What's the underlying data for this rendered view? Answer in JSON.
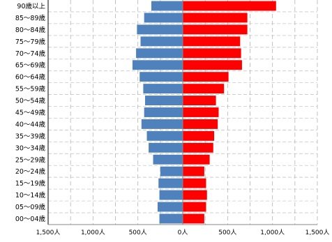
{
  "chart_data": {
    "type": "bar",
    "orientation": "horizontal",
    "subtype": "population-pyramid",
    "title": "",
    "xlabel": "",
    "ylabel": "",
    "categories": [
      "90歳以上",
      "85～89歳",
      "80～84歳",
      "75～79歳",
      "70～74歳",
      "65～69歳",
      "60～64歳",
      "55～59歳",
      "50～54歳",
      "45～49歳",
      "40～44歳",
      "35～39歳",
      "30～34歳",
      "25～29歳",
      "20～24歳",
      "15～19歳",
      "10～14歳",
      "05～09歳",
      "00～04歳"
    ],
    "series": [
      {
        "color": "#4F81BD",
        "side": "left",
        "values": [
          350,
          430,
          510,
          470,
          520,
          560,
          480,
          440,
          420,
          430,
          460,
          400,
          380,
          330,
          250,
          270,
          260,
          280,
          260
        ]
      },
      {
        "color": "#FF0000",
        "side": "right",
        "values": [
          1040,
          720,
          720,
          640,
          650,
          660,
          510,
          460,
          370,
          400,
          390,
          350,
          340,
          300,
          240,
          260,
          270,
          260,
          240
        ]
      }
    ],
    "xlim": [
      -1500,
      1500
    ],
    "xticks": [
      -1500,
      -1000,
      -500,
      0,
      500,
      1000,
      1500
    ],
    "xtick_labels": [
      "1,500人",
      "1,000人",
      "500人",
      "0人",
      "500人",
      "1,000人",
      "1,500人"
    ],
    "grid": {
      "vertical": true,
      "horizontal": true,
      "style": "dashed"
    },
    "legend": "none"
  }
}
